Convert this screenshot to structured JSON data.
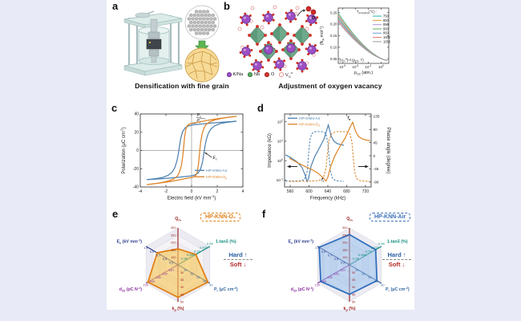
{
  "figure": {
    "background": "#e8eaf7",
    "sheet_background": "#ffffff",
    "panel_labels": {
      "a": "a",
      "b": "b",
      "c": "c",
      "d": "d",
      "e": "e",
      "f": "f"
    },
    "captions": {
      "a": "Densification with fine grain",
      "b": "Adjustment of oxygen vacancy"
    },
    "crystal_legend": [
      {
        "label": "K/Na",
        "color": "#9c4fc4",
        "open": false
      },
      {
        "label": "Nb",
        "color": "#57a85e",
        "open": false
      },
      {
        "label": "O",
        "color": "#d6372c",
        "open": false
      },
      {
        "label": "V~O~^••^",
        "color": "#eb9a94",
        "open": true
      }
    ],
    "o2_molecule_label": "O~2~",
    "badges": {
      "e": "HP-KNN-O₂",
      "f": "HP-KNN-Air"
    },
    "badge_colors": {
      "e": "#e0821c",
      "f": "#3a6fb8"
    },
    "hard_soft": {
      "hard": "Hard",
      "hard_arrow": "↑",
      "soft": "Soft",
      "soft_arrow": "↓",
      "hard_color": "#2b5fa8",
      "soft_color": "#b22a2a"
    }
  },
  "chart_data": [
    {
      "id": "vacancy-plot",
      "type": "line",
      "xlabel": "p~O2~ (atm.)",
      "ylabel": "(N~A~ mol^-1^)",
      "x_log_range": [
        -10,
        1.8
      ],
      "x_ticks": [
        {
          "log": -9,
          "label": "10^-9^"
        },
        {
          "log": -6,
          "label": "10^-6^"
        },
        {
          "log": -3,
          "label": "10^-3^"
        },
        {
          "log": 0,
          "label": "10^0^"
        }
      ],
      "y_range": [
        0.03,
        0.27
      ],
      "y_ticks": [
        "0.05",
        "0.10",
        "0.15",
        "0.20",
        "0.25"
      ],
      "legend_title": "T~annealing~(°C) :",
      "annotation": "[V~O~^••^]=f (p~O2~, T)",
      "curve_exponent": 1.6,
      "y_end_common": 0.042,
      "series": [
        {
          "name": "750",
          "color": "#3fc1b6",
          "y_start": 0.248
        },
        {
          "name": "800",
          "color": "#e8a33d",
          "y_start": 0.2415
        },
        {
          "name": "850",
          "color": "#b49ddb",
          "y_start": 0.235
        },
        {
          "name": "900",
          "color": "#68ba6c",
          "y_start": 0.2285
        },
        {
          "name": "950",
          "color": "#7e9fd6",
          "y_start": 0.222
        },
        {
          "name": "1000",
          "color": "#e57f78",
          "y_start": 0.2155
        },
        {
          "name": "1050",
          "color": "#9fa3a7",
          "y_start": 0.209
        }
      ]
    },
    {
      "id": "pe-hysteresis",
      "type": "line",
      "xlabel": "Electric field (kV mm^-1^)",
      "ylabel": "Polarization (μC cm^-2^)",
      "xlim": [
        -4,
        4
      ],
      "ylim": [
        -40,
        40
      ],
      "x_ticks": [
        "-4",
        "-2",
        "0",
        "2",
        "4"
      ],
      "y_ticks": [
        "-40",
        "-20",
        "0",
        "20",
        "40"
      ],
      "series": [
        {
          "name": "HP-KNN-Air",
          "color": "#4f81b0",
          "Ps": 32,
          "Pr": 27.8,
          "Ec": 1.0,
          "descending_branch": [
            [
              3.5,
              32
            ],
            [
              3.0,
              31.5
            ],
            [
              2.5,
              31.1
            ],
            [
              2.0,
              30.6
            ],
            [
              1.5,
              30.0
            ],
            [
              1.0,
              29.3
            ],
            [
              0.5,
              28.6
            ],
            [
              0.2,
              28.1
            ],
            [
              0.0,
              27.8
            ],
            [
              -0.3,
              26.6
            ],
            [
              -0.5,
              24.8
            ],
            [
              -0.7,
              20.5
            ],
            [
              -0.85,
              13
            ],
            [
              -0.95,
              4
            ],
            [
              -1.05,
              -5
            ],
            [
              -1.15,
              -12
            ],
            [
              -1.3,
              -18.5
            ],
            [
              -1.5,
              -23.5
            ],
            [
              -1.8,
              -27
            ],
            [
              -2.2,
              -29.3
            ],
            [
              -2.6,
              -30.4
            ],
            [
              -3.0,
              -31.2
            ],
            [
              -3.5,
              -32
            ]
          ]
        },
        {
          "name": "HP-KNN-O~2~",
          "color": "#dd8427",
          "Ps": 37.5,
          "Pr": 29.8,
          "Ec": 0.57,
          "descending_branch": [
            [
              3.5,
              37.5
            ],
            [
              3.0,
              36.6
            ],
            [
              2.5,
              35.7
            ],
            [
              2.0,
              34.7
            ],
            [
              1.5,
              33.6
            ],
            [
              1.0,
              32.3
            ],
            [
              0.5,
              30.9
            ],
            [
              0.2,
              30.1
            ],
            [
              0.0,
              29.7
            ],
            [
              -0.2,
              28.7
            ],
            [
              -0.35,
              26.8
            ],
            [
              -0.45,
              23
            ],
            [
              -0.55,
              14
            ],
            [
              -0.62,
              3
            ],
            [
              -0.7,
              -8
            ],
            [
              -0.8,
              -17
            ],
            [
              -0.95,
              -24
            ],
            [
              -1.1,
              -28
            ],
            [
              -1.4,
              -31.3
            ],
            [
              -1.8,
              -33.4
            ],
            [
              -2.3,
              -35
            ],
            [
              -2.8,
              -36.2
            ],
            [
              -3.5,
              -37.5
            ]
          ]
        }
      ],
      "annotations": [
        {
          "text": "P~s~",
          "x": 0.42,
          "y": 37.4,
          "anchor": "start",
          "leader": [
            [
              0.36,
              36.2
            ],
            [
              1.1,
              34.6
            ]
          ]
        },
        {
          "text": "P~r~",
          "x": 0.4,
          "y": 31.0,
          "anchor": "start",
          "leader": [
            [
              0.34,
              29.8
            ],
            [
              0.02,
              29.5
            ]
          ]
        },
        {
          "text": "E~c~",
          "x": 1.66,
          "y": -9.2,
          "anchor": "start",
          "arrow": [
            [
              1.58,
              -7.6
            ],
            [
              1.03,
              -2.2
            ]
          ]
        }
      ]
    },
    {
      "id": "impedance-phase",
      "type": "line",
      "xlabel": "Frequency (kHz)",
      "ylabel_left": "Impedance (kΩ)",
      "ylabel_right": "Phase angle (degree)",
      "xlim": [
        548,
        732
      ],
      "x_ticks": [
        "560",
        "600",
        "640",
        "680",
        "720"
      ],
      "y_left_log_range": [
        -1.35,
        2.4
      ],
      "y_left_ticks": [
        {
          "log": -1,
          "label": "10^-1^"
        },
        {
          "log": 0,
          "label": "10^0^"
        },
        {
          "log": 1,
          "label": "10^1^"
        },
        {
          "log": 2,
          "label": "10^2^"
        }
      ],
      "y_right_range": [
        -107,
        143
      ],
      "y_right_ticks": [
        "-90",
        "-45",
        "0",
        "45",
        "90",
        "135"
      ],
      "annotations": [
        {
          "text": "f~r~",
          "f": 629,
          "log": -1.05
        },
        {
          "text": "f~a~",
          "f": 685,
          "log": 2.14
        }
      ],
      "series": [
        {
          "name": "HP-KNN-Air",
          "color": "#4f81b0",
          "impedance": [
            [
              550,
              2.0
            ],
            [
              562,
              1.4
            ],
            [
              575,
              0.85
            ],
            [
              585,
              0.45
            ],
            [
              592,
              0.18
            ],
            [
              596,
              0.085
            ],
            [
              599,
              0.12
            ],
            [
              604,
              0.5
            ],
            [
              612,
              1.6
            ],
            [
              622,
              4.5
            ],
            [
              632,
              13
            ],
            [
              638,
              40
            ],
            [
              641,
              68
            ],
            [
              643,
              45
            ],
            [
              647,
              18
            ],
            [
              653,
              10
            ],
            [
              660,
              7.5
            ],
            [
              668,
              6.6
            ],
            [
              674,
              6.2
            ]
          ],
          "phase": [
            [
              550,
              -87
            ],
            [
              580,
              -86
            ],
            [
              590,
              -82
            ],
            [
              596,
              -55
            ],
            [
              599,
              5
            ],
            [
              602,
              55
            ],
            [
              606,
              76
            ],
            [
              612,
              82
            ],
            [
              622,
              83
            ],
            [
              630,
              82
            ],
            [
              636,
              76
            ],
            [
              640,
              45
            ],
            [
              643,
              -10
            ],
            [
              646,
              -55
            ],
            [
              650,
              -78
            ],
            [
              656,
              -85
            ],
            [
              666,
              -87
            ],
            [
              674,
              -88
            ]
          ]
        },
        {
          "name": "HP-KNN-O~2~",
          "color": "#dd8427",
          "impedance": [
            [
              558,
              1.35
            ],
            [
              575,
              0.8
            ],
            [
              592,
              0.5
            ],
            [
              608,
              0.33
            ],
            [
              620,
              0.22
            ],
            [
              630,
              0.13
            ],
            [
              636,
              0.09
            ],
            [
              640,
              0.14
            ],
            [
              646,
              0.5
            ],
            [
              655,
              1.8
            ],
            [
              666,
              5.5
            ],
            [
              677,
              15
            ],
            [
              686,
              45
            ],
            [
              691,
              80
            ],
            [
              693,
              95
            ],
            [
              696,
              55
            ],
            [
              700,
              28
            ],
            [
              706,
              17
            ],
            [
              714,
              13
            ],
            [
              722,
              11.5
            ],
            [
              730,
              10.5
            ]
          ],
          "phase": [
            [
              558,
              -88
            ],
            [
              600,
              -87
            ],
            [
              620,
              -85
            ],
            [
              630,
              -78
            ],
            [
              636,
              -45
            ],
            [
              639,
              5
            ],
            [
              643,
              55
            ],
            [
              648,
              75
            ],
            [
              656,
              82
            ],
            [
              668,
              83
            ],
            [
              680,
              82
            ],
            [
              687,
              75
            ],
            [
              691,
              50
            ],
            [
              694,
              -5
            ],
            [
              697,
              -55
            ],
            [
              701,
              -78
            ],
            [
              708,
              -85
            ],
            [
              718,
              -87
            ],
            [
              730,
              -88
            ]
          ]
        }
      ]
    },
    {
      "id": "radar-hp-knn-o2",
      "type": "radar",
      "badge": "HP-KNN-O₂",
      "fill": "rgba(247,199,87,0.62)",
      "stroke": "#e07d10",
      "axes": [
        {
          "label": "Q~m~",
          "color": "#961f1f",
          "min": 50,
          "max": 300,
          "ticks": [
            "100",
            "150",
            "200",
            "250",
            "300"
          ]
        },
        {
          "label": "1-tanδ (%)",
          "color": "#0e8a7d",
          "min": 0.955,
          "max": 0.98,
          "ticks": [
            "0.96",
            "0.965",
            "0.97",
            "0.975",
            "0.98"
          ]
        },
        {
          "label": "P~r~ (μC cm^-2^)",
          "color": "#31639c",
          "min": 5,
          "max": 30,
          "ticks": [
            "10",
            "15",
            "20",
            "25",
            "30"
          ]
        },
        {
          "label": "k~p~ (%)",
          "color": "#9b2020",
          "min": 25,
          "max": 50,
          "ticks": [
            "30",
            "35",
            "40",
            "45",
            "50"
          ]
        },
        {
          "label": "d~33~ (pC N^-1^)",
          "color": "#8b2fa0",
          "min": 100,
          "max": 150,
          "ticks": [
            "110",
            "120",
            "130",
            "140",
            "150"
          ]
        },
        {
          "label": "E~c~ (kV mm^-1^)",
          "color": "#2b3a8c",
          "min": 0.1,
          "max": 1.1,
          "ticks": [
            "0.3",
            "0.5",
            "0.7",
            "0.9",
            "1.1"
          ]
        }
      ],
      "values": [
        158,
        0.969,
        28.5,
        47,
        147,
        0.75
      ]
    },
    {
      "id": "radar-hp-knn-air",
      "type": "radar",
      "badge": "HP-KNN-Air",
      "fill": "rgba(147,188,233,0.55)",
      "stroke": "#2d6cbb",
      "axes": [
        {
          "label": "Q~m~",
          "color": "#961f1f",
          "min": 50,
          "max": 300,
          "ticks": [
            "100",
            "150",
            "200",
            "250",
            "300"
          ]
        },
        {
          "label": "1-tanδ (%)",
          "color": "#0e8a7d",
          "min": 0.955,
          "max": 0.98,
          "ticks": [
            "0.96",
            "0.965",
            "0.97",
            "0.975",
            "0.98"
          ]
        },
        {
          "label": "P~r~ (μC cm^-2^)",
          "color": "#31639c",
          "min": 5,
          "max": 30,
          "ticks": [
            "10",
            "15",
            "20",
            "25",
            "30"
          ]
        },
        {
          "label": "k~p~ (%)",
          "color": "#9b2020",
          "min": 25,
          "max": 50,
          "ticks": [
            "30",
            "35",
            "40",
            "45",
            "50"
          ]
        },
        {
          "label": "d~33~ (pC N^-1^)",
          "color": "#8b2fa0",
          "min": 100,
          "max": 150,
          "ticks": [
            "110",
            "120",
            "130",
            "140",
            "150"
          ]
        },
        {
          "label": "E~c~ (kV mm^-1^)",
          "color": "#2b3a8c",
          "min": 0.1,
          "max": 1.1,
          "ticks": [
            "0.3",
            "0.5",
            "0.7",
            "0.9",
            "1.1"
          ]
        }
      ],
      "values": [
        255,
        0.9755,
        26.5,
        45,
        145,
        1.05
      ]
    }
  ]
}
